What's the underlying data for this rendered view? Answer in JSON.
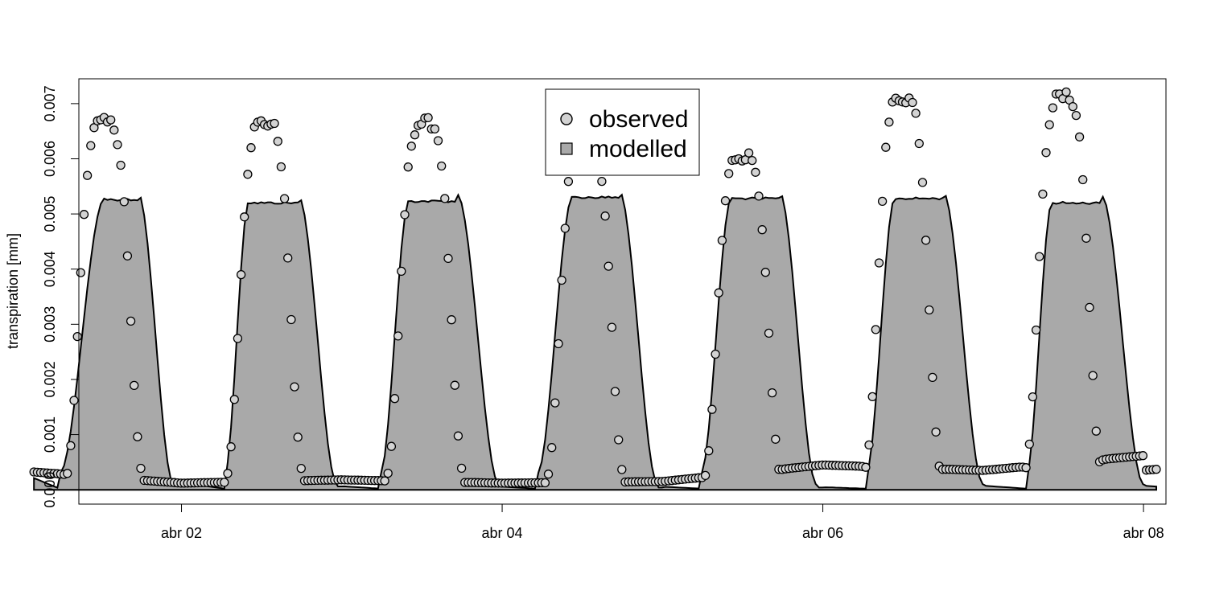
{
  "chart_data": {
    "type": "area",
    "title": "",
    "xlabel": "",
    "ylabel": "transpiration [mm]",
    "xlim": [
      1.36,
      8.14
    ],
    "ylim": [
      -0.00026,
      0.00745
    ],
    "x_ticks": [
      {
        "x": 2,
        "label": "abr 02"
      },
      {
        "x": 4,
        "label": "abr 04"
      },
      {
        "x": 6,
        "label": "abr 06"
      },
      {
        "x": 8,
        "label": "abr 08"
      }
    ],
    "y_ticks": [
      {
        "y": 0.0,
        "label": "0.000"
      },
      {
        "y": 0.001,
        "label": "0.001"
      },
      {
        "y": 0.002,
        "label": "0.002"
      },
      {
        "y": 0.003,
        "label": "0.003"
      },
      {
        "y": 0.004,
        "label": "0.004"
      },
      {
        "y": 0.005,
        "label": "0.005"
      },
      {
        "y": 0.006,
        "label": "0.006"
      },
      {
        "y": 0.007,
        "label": "0.007"
      }
    ],
    "grid": false,
    "legend": {
      "position": "top-center",
      "entries": [
        {
          "label": "observed",
          "marker": "circle",
          "fill": "#d3d3d3"
        },
        {
          "label": "modelled",
          "marker": "square",
          "fill": "#a9a9a9"
        }
      ]
    },
    "x_start": 1.08,
    "x_end": 8.08,
    "sample_interval_days": 0.0208333,
    "series": [
      {
        "name": "modelled",
        "style": "filled area",
        "color": "#a9a9a9",
        "days": [
          {
            "peak": 0.00528,
            "rise_start": 0.24,
            "plateau_start": 0.52,
            "plateau_end": 0.73,
            "fall_end": 0.95,
            "base_before": 0.00032,
            "base_after": 0.00012
          },
          {
            "peak": 0.00522,
            "rise_start": 0.27,
            "plateau_start": 0.42,
            "plateau_end": 0.73,
            "fall_end": 0.97,
            "base_before": 0.00012,
            "base_after": 6e-05
          },
          {
            "peak": 0.00525,
            "rise_start": 0.24,
            "plateau_start": 0.42,
            "plateau_end": 0.72,
            "fall_end": 0.98,
            "base_before": 5e-05,
            "base_after": 6e-05
          },
          {
            "peak": 0.00532,
            "rise_start": 0.22,
            "plateau_start": 0.44,
            "plateau_end": 0.73,
            "fall_end": 0.97,
            "base_before": 4e-05,
            "base_after": 4e-05
          },
          {
            "peak": 0.0053,
            "rise_start": 0.24,
            "plateau_start": 0.43,
            "plateau_end": 0.73,
            "fall_end": 0.96,
            "base_before": 4e-05,
            "base_after": 4e-05
          },
          {
            "peak": 0.0053,
            "rise_start": 0.27,
            "plateau_start": 0.45,
            "plateau_end": 0.75,
            "fall_end": 1.0,
            "base_before": 3e-05,
            "base_after": 6e-05
          },
          {
            "peak": 0.00522,
            "rise_start": 0.27,
            "plateau_start": 0.43,
            "plateau_end": 0.74,
            "fall_end": 1.0,
            "base_before": 6e-05,
            "base_after": 0.00045
          }
        ]
      },
      {
        "name": "observed",
        "style": "points",
        "color": "#d3d3d3",
        "days": [
          {
            "peak": 0.00665,
            "rise_start": 0.18,
            "peak_center": 0.52,
            "fall_end": 0.95,
            "night_start": 0.00034,
            "night_end": 0.00012
          },
          {
            "peak": 0.00665,
            "rise_start": 0.18,
            "peak_center": 0.52,
            "fall_end": 0.97,
            "night_start": 0.00012,
            "night_end": 0.00018
          },
          {
            "peak": 0.00665,
            "rise_start": 0.16,
            "peak_center": 0.52,
            "fall_end": 0.97,
            "night_start": 0.00018,
            "night_end": 0.00012
          },
          {
            "peak": 0.00636,
            "rise_start": 0.17,
            "peak_center": 0.52,
            "fall_end": 0.96,
            "night_start": 0.00012,
            "night_end": 0.00015
          },
          {
            "peak": 0.00605,
            "rise_start": 0.18,
            "peak_center": 0.5,
            "fall_end": 0.96,
            "night_start": 0.00015,
            "night_end": 0.00045
          },
          {
            "peak": 0.0071,
            "rise_start": 0.16,
            "peak_center": 0.5,
            "fall_end": 0.97,
            "night_start": 0.00045,
            "night_end": 0.00035
          },
          {
            "peak": 0.00712,
            "rise_start": 0.16,
            "peak_center": 0.5,
            "fall_end": 1.0,
            "night_start": 0.00035,
            "night_end": 0.00062
          }
        ]
      }
    ]
  }
}
